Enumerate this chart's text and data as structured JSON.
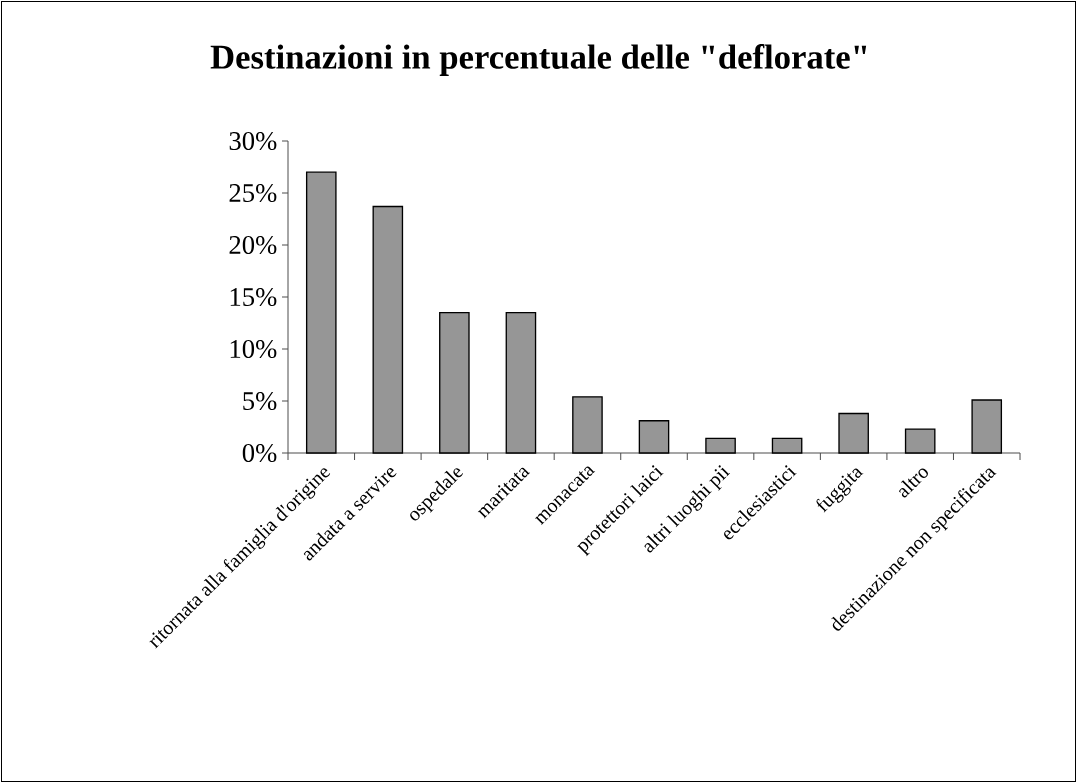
{
  "chart_data": {
    "type": "bar",
    "title": "Destinazioni in percentuale delle \"deflorate\"",
    "categories": [
      "ritornata alla famiglia d'origine",
      "andata a servire",
      "ospedale",
      "maritata",
      "monacata",
      "protettori laici",
      "altri luoghi pii",
      "ecclesiastici",
      "fuggita",
      "altro",
      "destinazione non specificata"
    ],
    "values": [
      27.0,
      23.7,
      13.5,
      13.5,
      5.4,
      3.1,
      1.4,
      1.4,
      3.8,
      2.3,
      5.1
    ],
    "color": "#969696",
    "ylim": [
      0,
      30
    ],
    "yticks": [
      {
        "value": 0,
        "label": "0%"
      },
      {
        "value": 5,
        "label": "5%"
      },
      {
        "value": 10,
        "label": "10%"
      },
      {
        "value": 15,
        "label": "15%"
      },
      {
        "value": 20,
        "label": "20%"
      },
      {
        "value": 25,
        "label": "25%"
      },
      {
        "value": 30,
        "label": "30%"
      }
    ],
    "grid": false
  }
}
